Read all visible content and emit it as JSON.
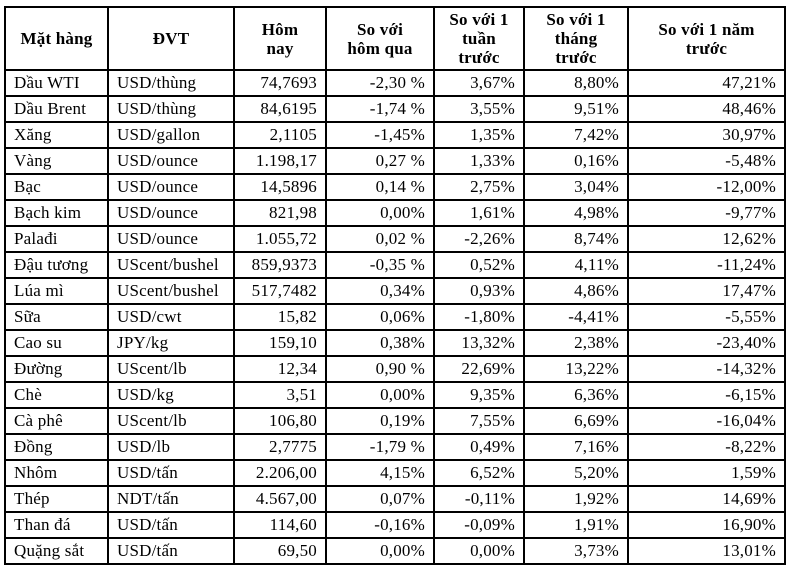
{
  "table": {
    "headers": [
      "Mặt hàng",
      "ĐVT",
      "Hôm\nnay",
      "So với\nhôm qua",
      "So với 1\ntuần\ntrước",
      "So với 1\ntháng\ntrước",
      "So với 1 năm\ntrước"
    ],
    "rows": [
      [
        "Dầu WTI",
        "USD/thùng",
        "74,7693",
        "-2,30 %",
        "3,67%",
        "8,80%",
        "47,21%"
      ],
      [
        "Dầu Brent",
        "USD/thùng",
        "84,6195",
        "-1,74 %",
        "3,55%",
        "9,51%",
        "48,46%"
      ],
      [
        "Xăng",
        "USD/gallon",
        "2,1105",
        "-1,45%",
        "1,35%",
        "7,42%",
        "30,97%"
      ],
      [
        "Vàng",
        "USD/ounce",
        "1.198,17",
        "0,27 %",
        "1,33%",
        "0,16%",
        "-5,48%"
      ],
      [
        "Bạc",
        "USD/ounce",
        "14,5896",
        "0,14 %",
        "2,75%",
        "3,04%",
        "-12,00%"
      ],
      [
        "Bạch kim",
        "USD/ounce",
        "821,98",
        "0,00%",
        "1,61%",
        "4,98%",
        "-9,77%"
      ],
      [
        "Palađi",
        "USD/ounce",
        "1.055,72",
        "0,02 %",
        "-2,26%",
        "8,74%",
        "12,62%"
      ],
      [
        "Đậu tương",
        "UScent/bushel",
        "859,9373",
        "-0,35 %",
        "0,52%",
        "4,11%",
        "-11,24%"
      ],
      [
        "Lúa mì",
        "UScent/bushel",
        "517,7482",
        "0,34%",
        "0,93%",
        "4,86%",
        "17,47%"
      ],
      [
        "Sữa",
        "USD/cwt",
        "15,82",
        "0,06%",
        "-1,80%",
        "-4,41%",
        "-5,55%"
      ],
      [
        "Cao su",
        "JPY/kg",
        "159,10",
        "0,38%",
        "13,32%",
        "2,38%",
        "-23,40%"
      ],
      [
        "Đường",
        "UScent/lb",
        "12,34",
        "0,90 %",
        "22,69%",
        "13,22%",
        "-14,32%"
      ],
      [
        "Chè",
        "USD/kg",
        "3,51",
        "0,00%",
        "9,35%",
        "6,36%",
        "-6,15%"
      ],
      [
        "Cà phê",
        "UScent/lb",
        "106,80",
        "0,19%",
        "7,55%",
        "6,69%",
        "-16,04%"
      ],
      [
        "Đồng",
        "USD/lb",
        "2,7775",
        "-1,79 %",
        "0,49%",
        "7,16%",
        "-8,22%"
      ],
      [
        "Nhôm",
        "USD/tấn",
        "2.206,00",
        "4,15%",
        "6,52%",
        "5,20%",
        "1,59%"
      ],
      [
        "Thép",
        "NDT/tấn",
        "4.567,00",
        "0,07%",
        "-0,11%",
        "1,92%",
        "14,69%"
      ],
      [
        "Than đá",
        "USD/tấn",
        "114,60",
        "-0,16%",
        "-0,09%",
        "1,91%",
        "16,90%"
      ],
      [
        "Quặng sắt",
        "USD/tấn",
        "69,50",
        "0,00%",
        "0,00%",
        "3,73%",
        "13,01%"
      ]
    ]
  }
}
